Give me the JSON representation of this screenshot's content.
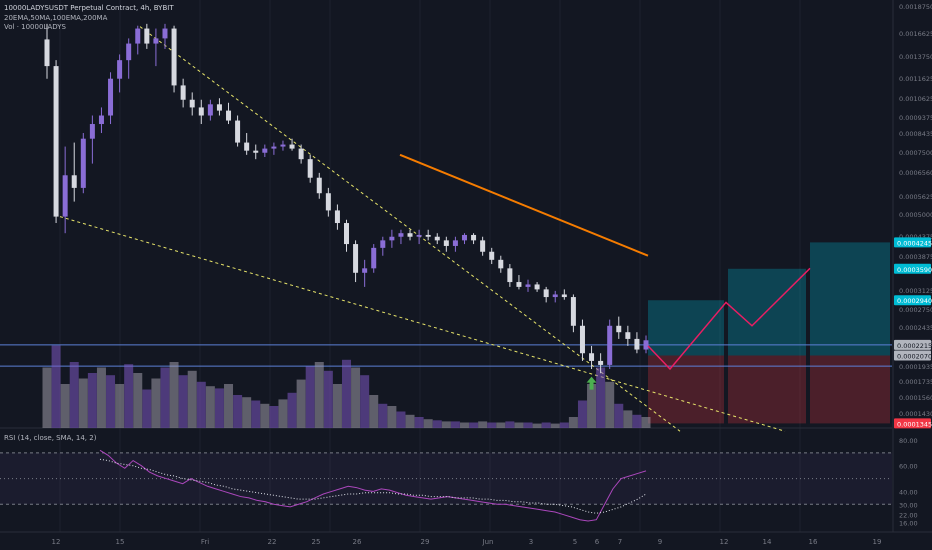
{
  "header": {
    "symbol_line": "10000LADYSUSDT Perpetual Contract, 4h, BYBIT",
    "indicators_line": "20EMA,50MA,100EMA,200MA",
    "volume_line": "Vol · 10000LADYS"
  },
  "rsi_panel": {
    "legend": "RSI (14, close, SMA, 14, 2)"
  },
  "chart_data": {
    "type": "candlestick",
    "price_axis": {
      "ticks": [
        "0.0018750",
        "0.0016625",
        "0.0013750",
        "0.0011625",
        "0.0010625",
        "0.0009375",
        "0.0008435",
        "0.0007500",
        "0.0006560",
        "0.0005625",
        "0.0005000",
        "0.0004375",
        "0.0003875",
        "0.0003125",
        "0.0002750",
        "0.0002435",
        "0.0002215",
        "0.0001935",
        "0.0001735",
        "0.0001560",
        "0.0001430"
      ],
      "highlighted": [
        {
          "label": "0.0004245",
          "color": "#00bcd4"
        },
        {
          "label": "0.0003590",
          "color": "#00bcd4"
        },
        {
          "label": "0.0002940",
          "color": "#00bcd4"
        },
        {
          "label": "0.0002215",
          "color": "#b2b5be"
        },
        {
          "label": "0.0002070",
          "color": "#b2b5be"
        },
        {
          "label": "0.0001345",
          "color": "#f23645"
        }
      ]
    },
    "time_axis": [
      "12",
      "15",
      "Fri",
      "22",
      "25",
      "26",
      "29",
      "Jun",
      "3",
      "5",
      "6",
      "7",
      "9",
      "12",
      "14",
      "16",
      "19"
    ],
    "rsi_axis": [
      "80.00",
      "60.00",
      "40.00",
      "30.00",
      "22.00",
      "16.00"
    ],
    "rsi_levels": [
      70,
      50,
      30
    ],
    "candles": [
      [
        0.00154,
        0.0017,
        0.0012,
        0.0013
      ],
      [
        0.0013,
        0.00135,
        0.00048,
        0.0005
      ],
      [
        0.0005,
        0.00078,
        0.00045,
        0.00065
      ],
      [
        0.00065,
        0.0008,
        0.00055,
        0.0006
      ],
      [
        0.0006,
        0.00085,
        0.00058,
        0.00082
      ],
      [
        0.00082,
        0.00095,
        0.0007,
        0.0009
      ],
      [
        0.0009,
        0.001,
        0.00085,
        0.00095
      ],
      [
        0.00095,
        0.00125,
        0.0009,
        0.0012
      ],
      [
        0.0012,
        0.0014,
        0.0011,
        0.00135
      ],
      [
        0.00135,
        0.00155,
        0.0012,
        0.0015
      ],
      [
        0.0015,
        0.00168,
        0.0014,
        0.00165
      ],
      [
        0.00165,
        0.0017,
        0.00145,
        0.0015
      ],
      [
        0.0015,
        0.00165,
        0.0013,
        0.00155
      ],
      [
        0.00155,
        0.0017,
        0.00145,
        0.00165
      ],
      [
        0.00165,
        0.00168,
        0.0011,
        0.00115
      ],
      [
        0.00115,
        0.0012,
        0.001,
        0.00105
      ],
      [
        0.00105,
        0.0011,
        0.00095,
        0.001
      ],
      [
        0.001,
        0.00105,
        0.0009,
        0.00095
      ],
      [
        0.00095,
        0.00105,
        0.00092,
        0.00102
      ],
      [
        0.00102,
        0.00106,
        0.00095,
        0.00098
      ],
      [
        0.00098,
        0.00103,
        0.0009,
        0.00092
      ],
      [
        0.00092,
        0.00095,
        0.00078,
        0.0008
      ],
      [
        0.0008,
        0.00085,
        0.00074,
        0.00076
      ],
      [
        0.00076,
        0.00079,
        0.00072,
        0.00075
      ],
      [
        0.00075,
        0.00079,
        0.00073,
        0.00077
      ],
      [
        0.00077,
        0.0008,
        0.00074,
        0.00078
      ],
      [
        0.00078,
        0.00081,
        0.00076,
        0.00079
      ],
      [
        0.00079,
        0.00082,
        0.00076,
        0.00077
      ],
      [
        0.00077,
        0.00079,
        0.0007,
        0.00072
      ],
      [
        0.00072,
        0.00074,
        0.00062,
        0.00064
      ],
      [
        0.00064,
        0.00066,
        0.00056,
        0.00058
      ],
      [
        0.00058,
        0.0006,
        0.0005,
        0.00052
      ],
      [
        0.00052,
        0.00054,
        0.00046,
        0.00048
      ],
      [
        0.00048,
        0.00049,
        0.0004,
        0.00042
      ],
      [
        0.00042,
        0.00043,
        0.00033,
        0.00035
      ],
      [
        0.00035,
        0.00038,
        0.00032,
        0.00036
      ],
      [
        0.00036,
        0.00042,
        0.00035,
        0.00041
      ],
      [
        0.00041,
        0.00044,
        0.00039,
        0.00043
      ],
      [
        0.00043,
        0.00046,
        0.00041,
        0.00044
      ],
      [
        0.00044,
        0.00046,
        0.00042,
        0.00045
      ],
      [
        0.00045,
        0.00046,
        0.00043,
        0.00044
      ],
      [
        0.00044,
        0.00046,
        0.00042,
        0.000445
      ],
      [
        0.000445,
        0.00046,
        0.00043,
        0.00044
      ],
      [
        0.00044,
        0.00045,
        0.00042,
        0.00043
      ],
      [
        0.00043,
        0.00044,
        0.0004,
        0.000415
      ],
      [
        0.000415,
        0.00044,
        0.0004,
        0.00043
      ],
      [
        0.00043,
        0.00045,
        0.00042,
        0.000445
      ],
      [
        0.000445,
        0.00045,
        0.00042,
        0.00043
      ],
      [
        0.00043,
        0.00044,
        0.00039,
        0.0004
      ],
      [
        0.0004,
        0.00041,
        0.00037,
        0.00038
      ],
      [
        0.00038,
        0.00039,
        0.00035,
        0.00036
      ],
      [
        0.00036,
        0.00037,
        0.00032,
        0.00033
      ],
      [
        0.00033,
        0.000345,
        0.000315,
        0.00032
      ],
      [
        0.00032,
        0.000335,
        0.00031,
        0.000325
      ],
      [
        0.000325,
        0.00033,
        0.00031,
        0.000315
      ],
      [
        0.000315,
        0.00032,
        0.00029,
        0.0003
      ],
      [
        0.0003,
        0.000312,
        0.00029,
        0.000305
      ],
      [
        0.000305,
        0.000315,
        0.000295,
        0.0003
      ],
      [
        0.0003,
        0.000305,
        0.00024,
        0.00025
      ],
      [
        0.00025,
        0.00026,
        0.0002,
        0.00021
      ],
      [
        0.00021,
        0.00022,
        0.00019,
        0.0002
      ],
      [
        0.0002,
        0.00021,
        0.000185,
        0.000195
      ],
      [
        0.000195,
        0.00026,
        0.00019,
        0.00025
      ],
      [
        0.00025,
        0.000265,
        0.00023,
        0.00024
      ],
      [
        0.00024,
        0.00025,
        0.00022,
        0.00023
      ],
      [
        0.00023,
        0.00024,
        0.00021,
        0.000215
      ],
      [
        0.000215,
        0.000235,
        0.00021,
        0.000228
      ]
    ],
    "volume": [
      0.55,
      0.75,
      0.4,
      0.6,
      0.45,
      0.5,
      0.55,
      0.48,
      0.4,
      0.58,
      0.5,
      0.35,
      0.45,
      0.55,
      0.6,
      0.48,
      0.52,
      0.42,
      0.38,
      0.36,
      0.4,
      0.3,
      0.28,
      0.25,
      0.22,
      0.2,
      0.26,
      0.32,
      0.44,
      0.56,
      0.6,
      0.52,
      0.4,
      0.62,
      0.55,
      0.48,
      0.3,
      0.22,
      0.2,
      0.15,
      0.12,
      0.1,
      0.08,
      0.07,
      0.06,
      0.06,
      0.05,
      0.05,
      0.06,
      0.05,
      0.05,
      0.06,
      0.05,
      0.05,
      0.04,
      0.05,
      0.04,
      0.05,
      0.1,
      0.25,
      0.4,
      0.55,
      0.42,
      0.22,
      0.16,
      0.12,
      0.1
    ],
    "rsi": [
      72,
      68,
      62,
      58,
      64,
      60,
      55,
      52,
      50,
      48,
      46,
      50,
      47,
      44,
      42,
      40,
      38,
      36,
      35,
      33,
      32,
      30,
      29,
      28,
      30,
      32,
      35,
      38,
      40,
      42,
      44,
      43,
      41,
      40,
      42,
      41,
      39,
      37,
      36,
      35,
      34,
      35,
      36,
      35,
      34,
      33,
      32,
      31,
      30,
      30,
      29,
      28,
      27,
      26,
      25,
      24,
      22,
      20,
      18,
      17,
      18,
      30,
      42,
      50,
      52,
      54,
      56
    ],
    "rsi_ma": [
      65,
      64,
      62,
      61,
      60,
      58,
      57,
      55,
      53,
      52,
      50,
      49,
      48,
      47,
      45,
      44,
      42,
      41,
      40,
      39,
      38,
      37,
      36,
      35,
      34,
      34,
      34,
      35,
      36,
      37,
      38,
      38,
      39,
      39,
      39,
      39,
      38,
      38,
      37,
      37,
      36,
      36,
      36,
      35,
      35,
      35,
      34,
      34,
      33,
      33,
      32,
      32,
      31,
      31,
      30,
      30,
      29,
      28,
      26,
      24,
      23,
      24,
      26,
      28,
      31,
      34,
      38
    ],
    "ma_line": {
      "from": 0.00074,
      "to": 0.00039
    },
    "signal": {
      "type": "arrow-up",
      "color": "#4caf50"
    },
    "target_path": [
      0.00022,
      0.00019,
      0.00029,
      0.00025,
      0.00036
    ],
    "zone_colors": {
      "profit": "#00bcd4",
      "stop": "#f23645"
    },
    "colors": {
      "up": "#8a6dd6",
      "down": "#d7d9e0",
      "volume": "#7e57c2",
      "trend": "#e7e46a",
      "ma": "#f57c00",
      "projection": "#e91e63",
      "rsi": "#ab47bc",
      "rsi_ma": "#e0e3eb"
    }
  }
}
